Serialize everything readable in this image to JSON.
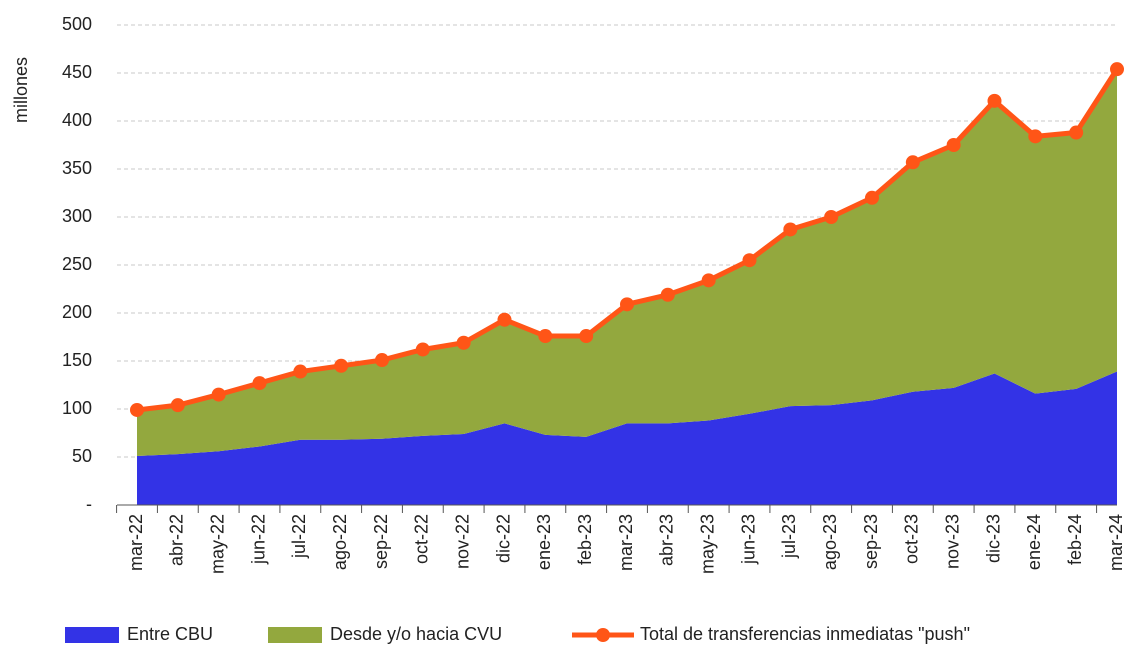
{
  "chart_data": {
    "type": "area",
    "y_label": "millones",
    "categories": [
      "mar-22",
      "abr-22",
      "may-22",
      "jun-22",
      "jul-22",
      "ago-22",
      "sep-22",
      "oct-22",
      "nov-22",
      "dic-22",
      "ene-23",
      "feb-23",
      "mar-23",
      "abr-23",
      "may-23",
      "jun-23",
      "jul-23",
      "ago-23",
      "sep-23",
      "oct-23",
      "nov-23",
      "dic-23",
      "ene-24",
      "feb-24",
      "mar-24"
    ],
    "series": [
      {
        "name": "Entre CBU",
        "type": "area",
        "color": "#3333e6",
        "values": [
          51,
          53,
          56,
          61,
          68,
          68,
          69,
          72,
          74,
          85,
          73,
          71,
          85,
          85,
          88,
          95,
          103,
          104,
          109,
          118,
          122,
          137,
          116,
          121,
          139
        ]
      },
      {
        "name": "Desde y/o hacia CVU",
        "type": "area",
        "color": "#93a83e",
        "values": [
          48,
          51,
          59,
          66,
          71,
          77,
          82,
          90,
          95,
          108,
          103,
          105,
          124,
          134,
          146,
          160,
          184,
          196,
          211,
          239,
          253,
          284,
          268,
          267,
          315
        ]
      },
      {
        "name": "Total de transferencias inmediatas \"push\"",
        "type": "line",
        "color": "#ff5517",
        "values": [
          99,
          104,
          115,
          127,
          139,
          145,
          151,
          162,
          169,
          193,
          176,
          176,
          209,
          219,
          234,
          255,
          287,
          300,
          320,
          357,
          375,
          421,
          384,
          388,
          454
        ]
      }
    ],
    "ylim": [
      0,
      500
    ],
    "yticks": [
      {
        "value": 0,
        "label": "-"
      },
      50,
      100,
      150,
      200,
      250,
      300,
      350,
      400,
      450,
      500
    ],
    "grid": true,
    "legend": "bottom"
  }
}
